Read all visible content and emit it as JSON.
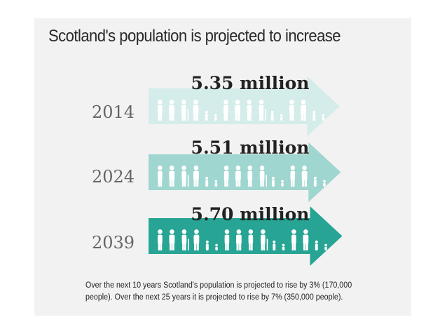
{
  "chart_data": {
    "type": "bar",
    "title": "Scotland's population is projected to increase",
    "categories": [
      "2014",
      "2024",
      "2039"
    ],
    "series": [
      {
        "values": [
          5.35,
          5.51,
          5.7
        ],
        "labels": [
          "5.35 million",
          "5.51 million",
          "5.70 million"
        ]
      }
    ],
    "colors": [
      "#d4ecea",
      "#9fd6cf",
      "#27a493"
    ],
    "xlabel": "",
    "ylabel": "",
    "grid": false,
    "legend": "none",
    "icons": "person-silhouette-icon"
  },
  "footnote": "Over the next 10 years Scotland's population is projected to rise by 3% (170,000 people). Over the next 25 years it is projected to rise by 7% (350,000 people)."
}
